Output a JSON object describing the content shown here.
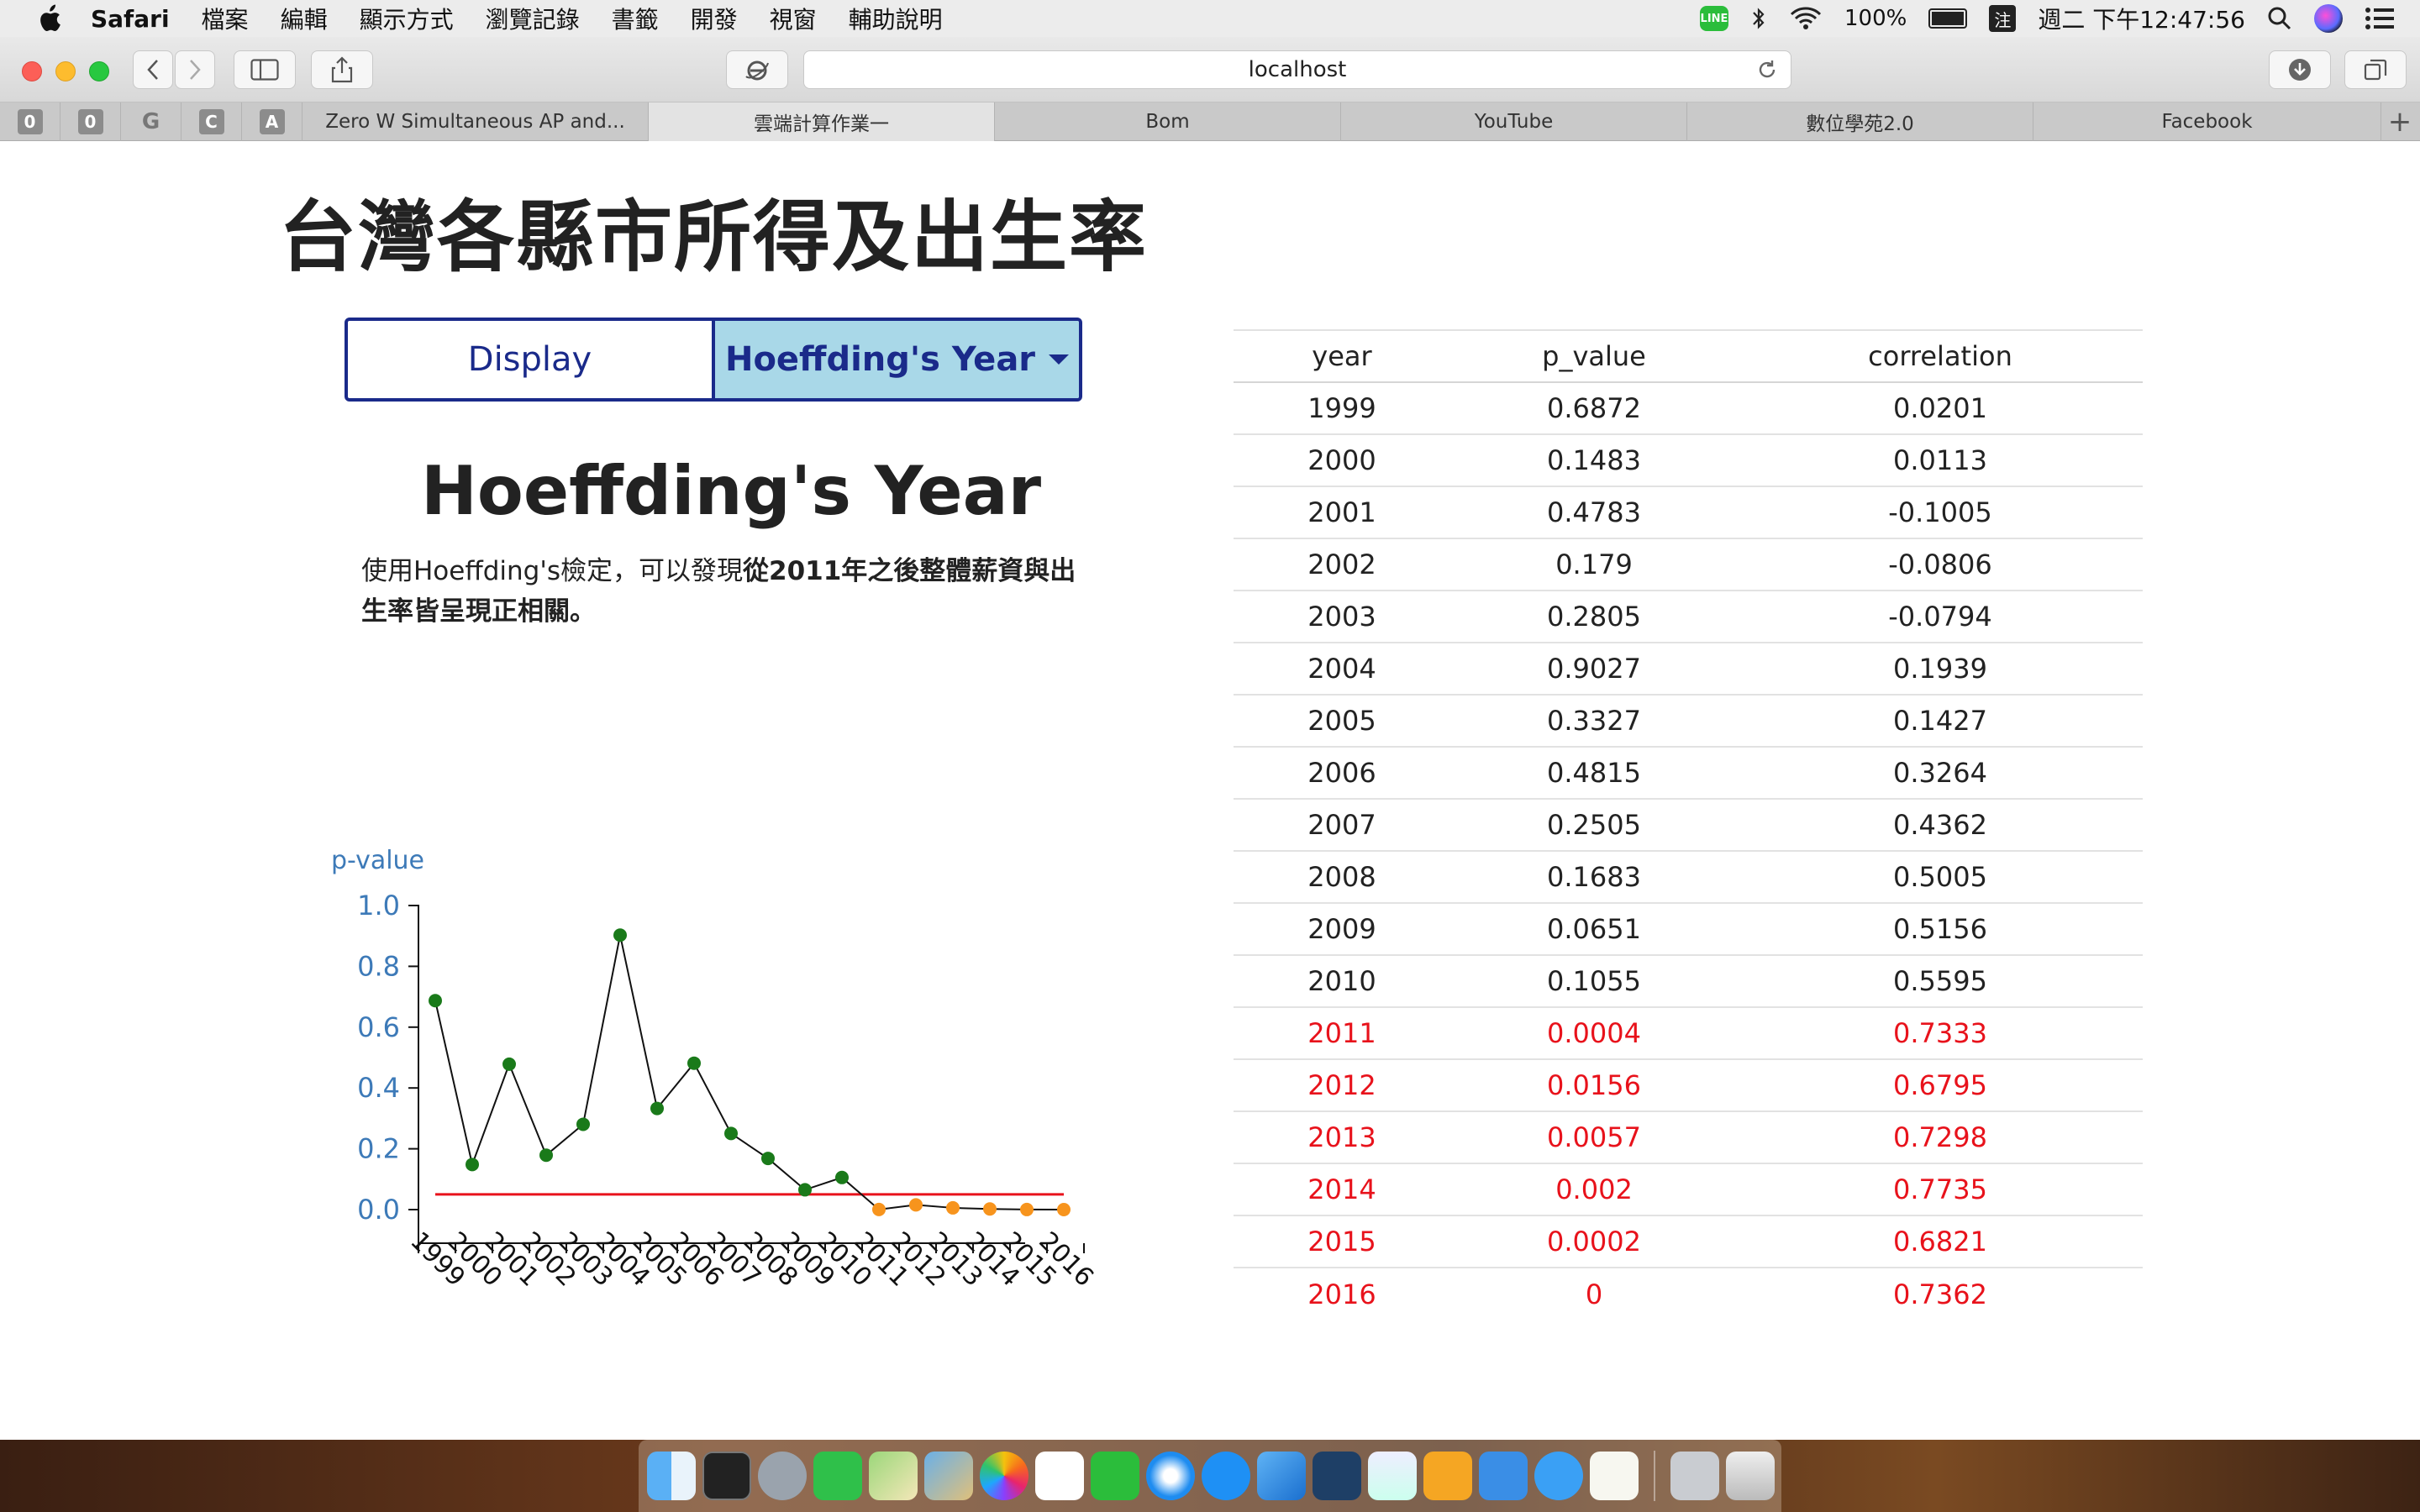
{
  "menubar": {
    "app": "Safari",
    "items": [
      "檔案",
      "編輯",
      "顯示方式",
      "瀏覽記錄",
      "書籤",
      "開發",
      "視窗",
      "輔助說明"
    ],
    "line_label": "LINE",
    "battery": "100%",
    "ime": "注",
    "clock": "週二 下午12:47:56"
  },
  "browser": {
    "url": "localhost",
    "favorites": [
      "0",
      "0",
      "G",
      "C",
      "A"
    ],
    "tabs": [
      {
        "label": "Zero W Simultaneous AP and...",
        "active": false
      },
      {
        "label": "雲端計算作業一",
        "active": true
      },
      {
        "label": "Bom",
        "active": false
      },
      {
        "label": "YouTube",
        "active": false
      },
      {
        "label": "數位學苑2.0",
        "active": false
      },
      {
        "label": "Facebook",
        "active": false
      }
    ],
    "new_tab": "+"
  },
  "page": {
    "title": "台灣各縣市所得及出生率",
    "buttons": {
      "display": "Display",
      "dropdown": "Hoeffding's Year"
    },
    "section_title": "Hoeffding's Year",
    "desc_plain": "使用Hoeffding's檢定，可以發現",
    "desc_bold": "從2011年之後整體薪資與出生率皆呈現正相關。"
  },
  "table": {
    "headers": [
      "year",
      "p_value",
      "correlation"
    ],
    "rows": [
      [
        "1999",
        "0.6872",
        "0.0201"
      ],
      [
        "2000",
        "0.1483",
        "0.0113"
      ],
      [
        "2001",
        "0.4783",
        "-0.1005"
      ],
      [
        "2002",
        "0.179",
        "-0.0806"
      ],
      [
        "2003",
        "0.2805",
        "-0.0794"
      ],
      [
        "2004",
        "0.9027",
        "0.1939"
      ],
      [
        "2005",
        "0.3327",
        "0.1427"
      ],
      [
        "2006",
        "0.4815",
        "0.3264"
      ],
      [
        "2007",
        "0.2505",
        "0.4362"
      ],
      [
        "2008",
        "0.1683",
        "0.5005"
      ],
      [
        "2009",
        "0.0651",
        "0.5156"
      ],
      [
        "2010",
        "0.1055",
        "0.5595"
      ],
      [
        "2011",
        "0.0004",
        "0.7333"
      ],
      [
        "2012",
        "0.0156",
        "0.6795"
      ],
      [
        "2013",
        "0.0057",
        "0.7298"
      ],
      [
        "2014",
        "0.002",
        "0.7735"
      ],
      [
        "2015",
        "0.0002",
        "0.6821"
      ],
      [
        "2016",
        "0",
        "0.7362"
      ]
    ],
    "highlight_from_year": 2011,
    "highlight_color": "#e8121b"
  },
  "chart_data": {
    "type": "line",
    "ylabel": "p-value",
    "ylim": [
      0,
      1.0
    ],
    "yticks": [
      "0.0",
      "0.2",
      "0.4",
      "0.6",
      "0.8",
      "1.0"
    ],
    "x": [
      "1999",
      "2000",
      "2001",
      "2002",
      "2003",
      "2004",
      "2005",
      "2006",
      "2007",
      "2008",
      "2009",
      "2010",
      "2011",
      "2012",
      "2013",
      "2014",
      "2015",
      "2016"
    ],
    "series": [
      {
        "values": [
          0.6872,
          0.1483,
          0.4783,
          0.179,
          0.2805,
          0.9027,
          0.3327,
          0.4815,
          0.2505,
          0.1683,
          0.0651,
          0.1055,
          0.0004,
          0.0156,
          0.0057,
          0.002,
          0.0002,
          0
        ]
      }
    ],
    "threshold": 0.05,
    "colors": {
      "line": "#111111",
      "point_normal": "#1a7a1a",
      "point_significant": "#f7941d",
      "threshold": "#e8121b",
      "axis_text": "#3d7ab8"
    }
  }
}
